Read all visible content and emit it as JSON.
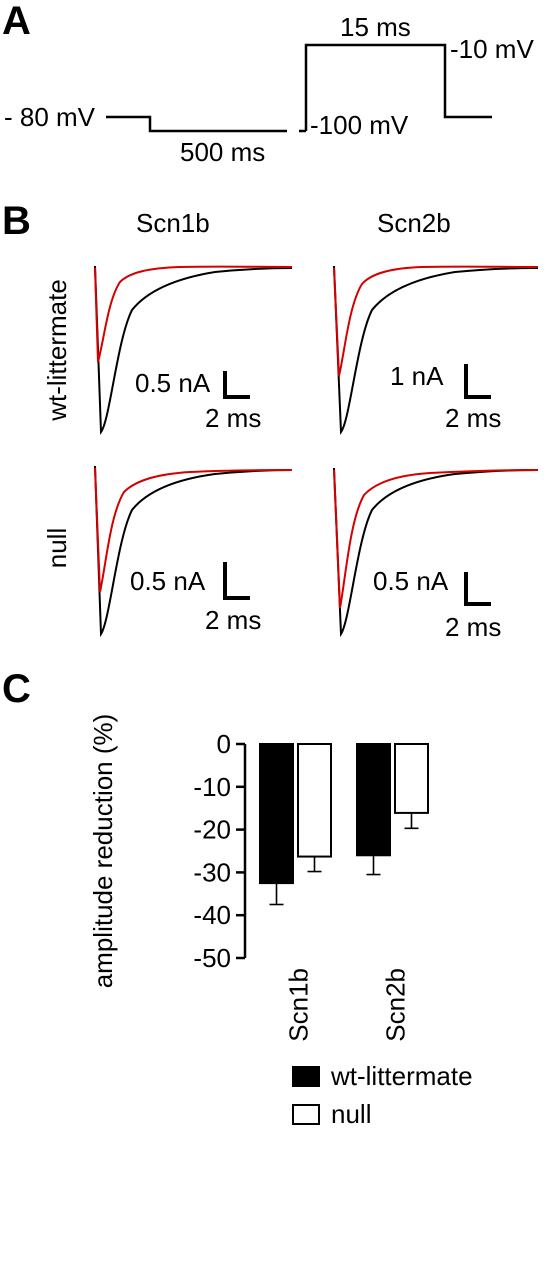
{
  "panels": {
    "a": {
      "letter": "A",
      "labels": {
        "holding": "- 80 mV",
        "prepulse_duration": "500 ms",
        "prepulse_potential": "-100 mV",
        "test_duration": "15 ms",
        "test_potential": "-10 mV"
      }
    },
    "b": {
      "letter": "B",
      "col_headers": [
        "Scn1b",
        "Scn2b"
      ],
      "row_headers": [
        "wt-littermate",
        "null"
      ],
      "scale_bars": [
        {
          "current": "0.5 nA",
          "time": "2 ms"
        },
        {
          "current": "1 nA",
          "time": "2 ms"
        },
        {
          "current": "0.5 nA",
          "time": "2 ms"
        },
        {
          "current": "0.5 nA",
          "time": "2 ms"
        }
      ],
      "trace_colors": {
        "control": "#000000",
        "prepulse": "#d40000"
      }
    },
    "c": {
      "letter": "C"
    }
  },
  "chart_data": {
    "type": "bar",
    "categories": [
      "Scn1b",
      "Scn2b"
    ],
    "ylabel": "amplitude reduction (%)",
    "ylim": [
      -50,
      0
    ],
    "yticks": [
      0,
      -10,
      -20,
      -30,
      -40,
      -50
    ],
    "legend_position": "bottom-right",
    "series": [
      {
        "name": "wt-littermate",
        "values": [
          -32.5,
          -26.0
        ],
        "errors": [
          5.0,
          4.5
        ],
        "color": "#000000"
      },
      {
        "name": "null",
        "values": [
          -26.3,
          -16.1
        ],
        "errors": [
          3.5,
          3.6
        ],
        "color": "#ffffff"
      }
    ]
  }
}
